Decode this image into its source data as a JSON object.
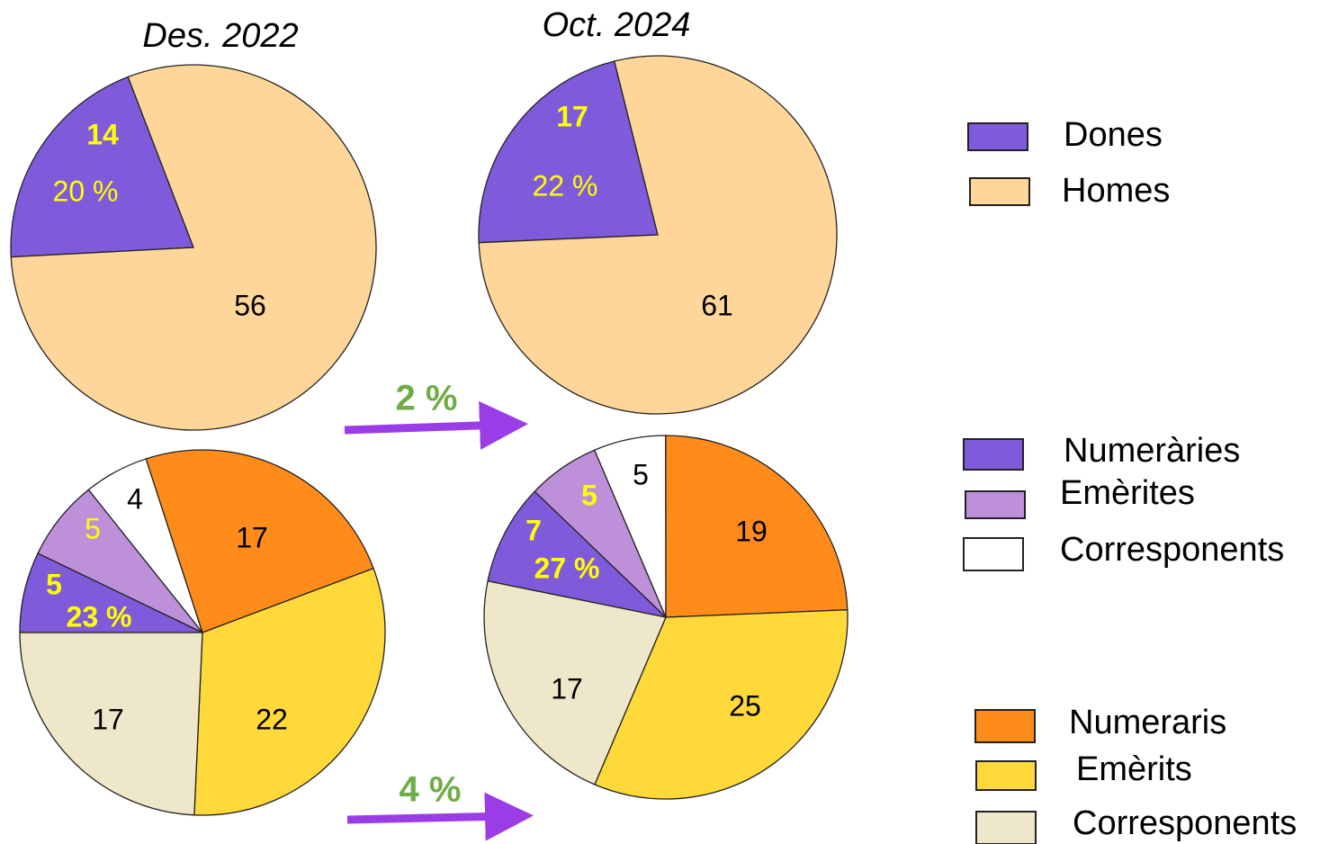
{
  "chart_data": [
    {
      "type": "pie",
      "title": "Des. 2022",
      "categories": [
        "Dones",
        "Homes"
      ],
      "colors": [
        "#7f5bdc",
        "#ffd699"
      ],
      "values": [
        14,
        56
      ],
      "percent_label": "20 %"
    },
    {
      "type": "pie",
      "title": "Oct. 2024",
      "values": [
        17,
        61
      ],
      "percent_label": "22 %"
    },
    {
      "type": "pie",
      "categories": [
        "Numeràries",
        "Emèrites",
        "Corresponents",
        "Numeraris",
        "Emèrits",
        "Corresponents"
      ],
      "colors": [
        "#7f5bdc",
        "#bf90da",
        "#ffffff",
        "#ff8c1a",
        "#ffd83a",
        "#efe7c9"
      ],
      "values": [
        5,
        5,
        4,
        17,
        22,
        17
      ],
      "percent_label": "23 %"
    },
    {
      "type": "pie",
      "values": [
        7,
        5,
        5,
        19,
        25,
        17
      ],
      "percent_label": "27 %"
    }
  ],
  "arrows": [
    {
      "label": "2 %"
    },
    {
      "label": "4 %"
    }
  ]
}
